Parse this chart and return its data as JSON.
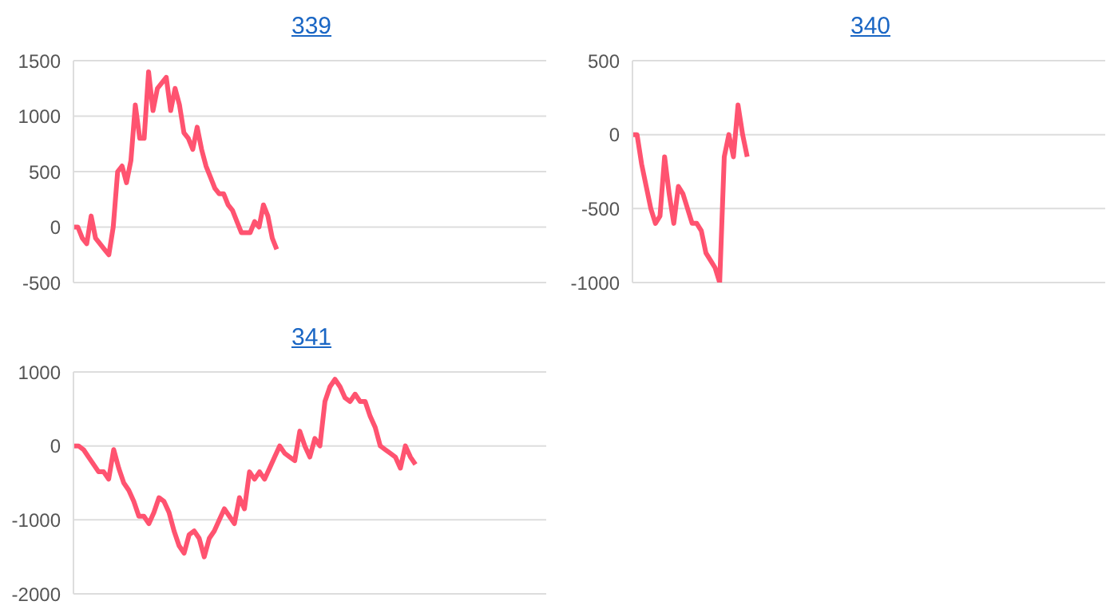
{
  "chart_data": [
    {
      "type": "line",
      "title": "339",
      "categories": [
        null,
        null,
        null,
        null,
        null,
        null,
        null,
        null,
        null,
        null,
        null,
        null,
        null,
        null,
        null,
        null,
        null,
        null,
        null,
        null,
        null,
        null,
        null,
        null,
        null,
        null,
        null,
        null,
        null,
        null,
        null,
        null,
        null,
        null,
        null,
        null,
        null,
        null,
        null,
        null,
        null,
        null,
        null,
        null,
        null,
        null,
        null,
        null,
        null,
        null,
        null,
        null,
        null,
        null,
        null,
        null,
        null,
        null,
        null,
        null,
        null,
        null,
        null,
        null,
        null,
        null,
        null,
        null,
        null,
        null,
        null,
        null,
        null,
        null,
        null,
        null,
        null,
        null,
        null,
        null,
        null,
        null,
        null,
        null,
        null,
        null,
        null,
        null,
        null,
        null,
        null,
        null,
        null,
        null,
        null,
        null,
        null,
        null,
        null,
        null,
        null,
        null,
        null,
        null,
        null,
        null,
        null,
        null
      ],
      "series": [
        {
          "color": "#ff5370",
          "values": [
            0,
            0,
            -100,
            -150,
            100,
            -100,
            -150,
            -200,
            -250,
            0,
            500,
            550,
            400,
            600,
            1100,
            800,
            800,
            1400,
            1050,
            1250,
            1300,
            1350,
            1050,
            1250,
            1100,
            850,
            800,
            700,
            900,
            700,
            550,
            450,
            350,
            300,
            300,
            200,
            150,
            50,
            -50,
            -50,
            -50,
            50,
            0,
            200,
            100,
            -100,
            -200,
            null,
            null,
            null,
            null,
            null,
            null,
            null,
            null,
            null,
            null,
            null,
            null,
            null,
            null,
            null,
            null,
            null,
            null,
            null,
            null,
            null,
            null,
            null,
            null,
            null,
            null,
            null,
            null,
            null,
            null,
            null,
            null,
            null,
            null,
            null,
            null,
            null,
            null,
            null,
            null,
            null,
            null,
            null,
            null,
            null,
            null,
            null,
            null,
            null,
            null,
            null,
            null,
            null,
            null,
            null,
            null,
            null,
            null,
            null,
            null,
            null
          ]
        }
      ],
      "ylim": [
        -500,
        1500
      ],
      "yticks": [
        -500,
        0,
        500,
        1000,
        1500
      ],
      "grid": "y",
      "tick_labels": "y",
      "marker": "none",
      "line_style": "solid"
    },
    {
      "type": "line",
      "title": "340",
      "categories": [
        null,
        null,
        null,
        null,
        null,
        null,
        null,
        null,
        null,
        null,
        null,
        null,
        null,
        null,
        null,
        null,
        null,
        null,
        null,
        null,
        null,
        null,
        null,
        null,
        null,
        null,
        null,
        null,
        null,
        null,
        null,
        null,
        null,
        null,
        null,
        null,
        null,
        null,
        null,
        null,
        null,
        null,
        null,
        null,
        null,
        null,
        null,
        null,
        null,
        null,
        null,
        null,
        null,
        null,
        null,
        null,
        null,
        null,
        null,
        null,
        null,
        null,
        null,
        null,
        null,
        null,
        null,
        null,
        null,
        null,
        null,
        null,
        null,
        null,
        null,
        null,
        null,
        null,
        null,
        null,
        null,
        null,
        null,
        null,
        null,
        null,
        null,
        null,
        null,
        null,
        null,
        null,
        null,
        null,
        null,
        null,
        null,
        null,
        null,
        null,
        null,
        null,
        null,
        null
      ],
      "series": [
        {
          "color": "#ff5370",
          "values": [
            0,
            0,
            -200,
            -350,
            -500,
            -600,
            -550,
            -150,
            -400,
            -600,
            -350,
            -400,
            -500,
            -600,
            -600,
            -650,
            -800,
            -850,
            -900,
            -1000,
            -150,
            0,
            -150,
            200,
            0,
            -150,
            null,
            null,
            null,
            null,
            null,
            null,
            null,
            null,
            null,
            null,
            null,
            null,
            null,
            null,
            null,
            null,
            null,
            null,
            null,
            null,
            null,
            null,
            null,
            null,
            null,
            null,
            null,
            null,
            null,
            null,
            null,
            null,
            null,
            null,
            null,
            null,
            null,
            null,
            null,
            null,
            null,
            null,
            null,
            null,
            null,
            null,
            null,
            null,
            null,
            null,
            null,
            null,
            null,
            null,
            null,
            null,
            null,
            null,
            null,
            null,
            null,
            null,
            null,
            null,
            null,
            null,
            null,
            null,
            null,
            null,
            null,
            null,
            null,
            null,
            null,
            null,
            null,
            null
          ]
        }
      ],
      "ylim": [
        -1000,
        500
      ],
      "yticks": [
        -1000,
        -500,
        0,
        500
      ],
      "grid": "y",
      "tick_labels": "y",
      "marker": "none",
      "line_style": "solid"
    },
    {
      "type": "line",
      "title": "341",
      "categories": [
        null,
        null,
        null,
        null,
        null,
        null,
        null,
        null,
        null,
        null,
        null,
        null,
        null,
        null,
        null,
        null,
        null,
        null,
        null,
        null,
        null,
        null,
        null,
        null,
        null,
        null,
        null,
        null,
        null,
        null,
        null,
        null,
        null,
        null,
        null,
        null,
        null,
        null,
        null,
        null,
        null,
        null,
        null,
        null,
        null,
        null,
        null,
        null,
        null,
        null,
        null,
        null,
        null,
        null,
        null,
        null,
        null,
        null,
        null,
        null,
        null,
        null,
        null,
        null,
        null,
        null,
        null,
        null,
        null,
        null,
        null,
        null,
        null,
        null,
        null,
        null,
        null,
        null,
        null,
        null,
        null,
        null,
        null,
        null,
        null,
        null,
        null,
        null,
        null,
        null,
        null,
        null,
        null,
        null,
        null
      ],
      "series": [
        {
          "color": "#ff5370",
          "values": [
            0,
            0,
            -50,
            -150,
            -250,
            -350,
            -350,
            -450,
            -50,
            -300,
            -500,
            -600,
            -750,
            -950,
            -950,
            -1050,
            -900,
            -700,
            -750,
            -900,
            -1150,
            -1350,
            -1450,
            -1200,
            -1150,
            -1250,
            -1500,
            -1250,
            -1150,
            -1000,
            -850,
            -950,
            -1050,
            -700,
            -850,
            -350,
            -450,
            -350,
            -450,
            -300,
            -150,
            0,
            -100,
            -150,
            -200,
            200,
            0,
            -150,
            100,
            0,
            600,
            800,
            900,
            800,
            650,
            600,
            700,
            600,
            600,
            400,
            250,
            0,
            -50,
            -100,
            -150,
            -300,
            0,
            -150,
            -250,
            null,
            null,
            null,
            null,
            null,
            null,
            null,
            null,
            null,
            null,
            null,
            null,
            null,
            null,
            null,
            null,
            null,
            null,
            null,
            null,
            null,
            null,
            null,
            null,
            null,
            null
          ]
        }
      ],
      "ylim": [
        -2000,
        1000
      ],
      "yticks": [
        -2000,
        -1000,
        0,
        1000
      ],
      "grid": "y",
      "tick_labels": "y",
      "marker": "none",
      "line_style": "solid"
    }
  ]
}
